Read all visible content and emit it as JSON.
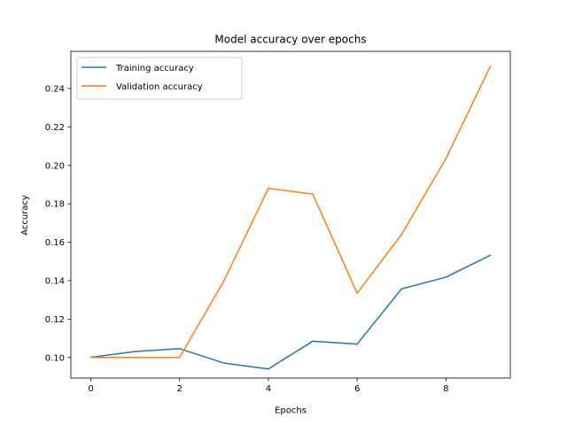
{
  "chart_data": {
    "type": "line",
    "title": "Model accuracy over epochs",
    "xlabel": "Epochs",
    "ylabel": "Accuracy",
    "x": [
      0,
      1,
      2,
      3,
      4,
      5,
      6,
      7,
      8,
      9
    ],
    "xlim": [
      -0.45,
      9.45
    ],
    "ylim": [
      0.0893,
      0.2593
    ],
    "xticks": [
      0,
      2,
      4,
      6,
      8
    ],
    "yticks": [
      0.1,
      0.12,
      0.14,
      0.16,
      0.18,
      0.2,
      0.22,
      0.24
    ],
    "grid": false,
    "legend_position": "upper-left",
    "series": [
      {
        "name": "Training accuracy",
        "color": "#1f77b4",
        "values": [
          0.1001,
          0.1031,
          0.1046,
          0.0971,
          0.094,
          0.1085,
          0.107,
          0.1357,
          0.1418,
          0.1532
        ]
      },
      {
        "name": "Validation accuracy",
        "color": "#ff7f0e",
        "values": [
          0.1,
          0.1,
          0.1,
          0.14,
          0.188,
          0.185,
          0.1335,
          0.164,
          0.2035,
          0.2515
        ]
      }
    ]
  }
}
